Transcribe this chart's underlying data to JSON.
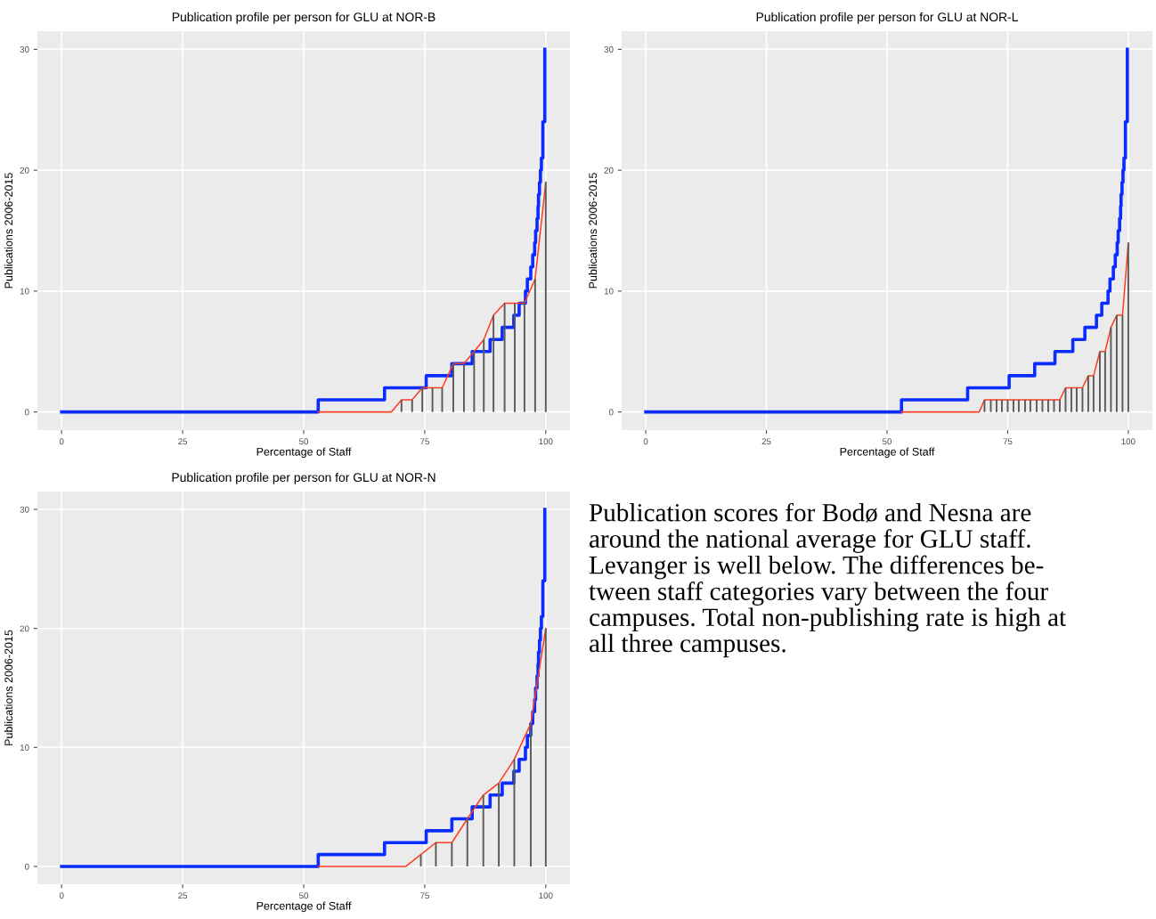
{
  "chart_data": [
    {
      "type": "line",
      "title": "Publication profile per person for GLU at NOR-B",
      "xlabel": "Percentage of Staff",
      "ylabel": "Publications 2006-2015",
      "xlim": [
        -5,
        105
      ],
      "ylim": [
        -1.5,
        31.5
      ],
      "xticks": [
        0,
        25,
        50,
        75,
        100
      ],
      "yticks": [
        0,
        10,
        20,
        30
      ],
      "grid": true,
      "series": [
        {
          "type": "bar",
          "color": "#595959",
          "x": [
            70.2,
            72.4,
            74.5,
            76.6,
            78.6,
            80.9,
            83.1,
            85.2,
            87.2,
            89.2,
            91.5,
            93.6,
            95.6,
            97.8,
            100
          ],
          "values": [
            1,
            1,
            2,
            2,
            2,
            4,
            4,
            5,
            6,
            8,
            9,
            9,
            9,
            11,
            19
          ]
        },
        {
          "type": "line",
          "color": "#ff3d1f",
          "x": [
            53,
            68.1,
            70.2,
            72.4,
            74.5,
            76.6,
            78.6,
            80.9,
            83.1,
            85.2,
            87.2,
            89.2,
            91.5,
            93.6,
            95.6,
            97.8,
            100
          ],
          "values": [
            0,
            0,
            1,
            1,
            2,
            2,
            2,
            4,
            4,
            5,
            6,
            8,
            9,
            9,
            9,
            11,
            19
          ]
        },
        {
          "type": "step",
          "color": "#0a2cff",
          "x": [
            0,
            53,
            66.7,
            75.3,
            80.6,
            84.8,
            88.5,
            91.0,
            93.4,
            94.5,
            95.8,
            96.2,
            96.9,
            97.3,
            97.7,
            97.9,
            98.2,
            98.4,
            98.5,
            98.7,
            98.9,
            99.1,
            99.4,
            99.8
          ],
          "values": [
            0,
            1,
            2,
            3,
            4,
            5,
            6,
            7,
            8,
            9,
            10,
            11,
            12,
            13,
            14,
            15,
            16,
            17,
            18,
            19,
            20,
            21,
            24,
            30
          ]
        }
      ]
    },
    {
      "type": "line",
      "title": "Publication profile per person for GLU at NOR-L",
      "xlabel": "Percentage of Staff",
      "ylabel": "Publications 2006-2015",
      "xlim": [
        -5,
        105
      ],
      "ylim": [
        -1.5,
        31.5
      ],
      "xticks": [
        0,
        25,
        50,
        75,
        100
      ],
      "yticks": [
        0,
        10,
        20,
        30
      ],
      "grid": true,
      "series": [
        {
          "type": "bar",
          "color": "#595959",
          "x": [
            70.2,
            71.5,
            72.7,
            73.8,
            75.0,
            76.2,
            77.3,
            78.6,
            79.7,
            81.0,
            82.2,
            83.4,
            84.6,
            85.8,
            87.0,
            88.2,
            89.3,
            90.5,
            91.7,
            92.8,
            94.1,
            95.2,
            96.4,
            97.6,
            98.8,
            100
          ],
          "values": [
            1,
            1,
            1,
            1,
            1,
            1,
            1,
            1,
            1,
            1,
            1,
            1,
            1,
            1,
            2,
            2,
            2,
            2,
            3,
            3,
            5,
            5,
            7,
            8,
            8,
            14
          ]
        },
        {
          "type": "line",
          "color": "#ff3d1f",
          "x": [
            53,
            69.1,
            70.2,
            71.5,
            72.7,
            73.8,
            75.0,
            76.2,
            77.3,
            78.6,
            79.7,
            81.0,
            82.2,
            83.4,
            84.6,
            85.8,
            87.0,
            88.2,
            89.3,
            90.5,
            91.7,
            92.8,
            94.1,
            95.2,
            96.4,
            97.6,
            98.8,
            100
          ],
          "values": [
            0,
            0,
            1,
            1,
            1,
            1,
            1,
            1,
            1,
            1,
            1,
            1,
            1,
            1,
            1,
            1,
            2,
            2,
            2,
            2,
            3,
            3,
            5,
            5,
            7,
            8,
            8,
            14
          ]
        },
        {
          "type": "step",
          "color": "#0a2cff",
          "x": [
            0,
            53,
            66.7,
            75.3,
            80.6,
            84.8,
            88.5,
            91.0,
            93.4,
            94.5,
            95.8,
            96.2,
            96.9,
            97.3,
            97.7,
            97.9,
            98.2,
            98.4,
            98.5,
            98.7,
            98.9,
            99.1,
            99.4,
            99.8
          ],
          "values": [
            0,
            1,
            2,
            3,
            4,
            5,
            6,
            7,
            8,
            9,
            10,
            11,
            12,
            13,
            14,
            15,
            16,
            17,
            18,
            19,
            20,
            21,
            24,
            30
          ]
        }
      ]
    },
    {
      "type": "line",
      "title": "Publication profile per person for GLU at NOR-N",
      "xlabel": "Percentage of Staff",
      "ylabel": "Publications 2006-2015",
      "xlim": [
        -5,
        105
      ],
      "ylim": [
        -1.5,
        31.5
      ],
      "xticks": [
        0,
        25,
        50,
        75,
        100
      ],
      "yticks": [
        0,
        10,
        20,
        30
      ],
      "grid": true,
      "series": [
        {
          "type": "bar",
          "color": "#595959",
          "x": [
            74.2,
            77.3,
            80.6,
            83.8,
            87.1,
            90.3,
            93.5,
            96.9,
            100
          ],
          "values": [
            1,
            2,
            2,
            4,
            6,
            7,
            9,
            12,
            20
          ]
        },
        {
          "type": "line",
          "color": "#ff3d1f",
          "x": [
            53,
            71.1,
            74.2,
            77.3,
            80.6,
            83.8,
            87.1,
            90.3,
            93.5,
            96.9,
            100
          ],
          "values": [
            0,
            0,
            1,
            2,
            2,
            4,
            6,
            7,
            9,
            12,
            20
          ]
        },
        {
          "type": "step",
          "color": "#0a2cff",
          "x": [
            0,
            53,
            66.7,
            75.3,
            80.6,
            84.8,
            88.5,
            91.0,
            93.4,
            94.5,
            95.8,
            96.2,
            96.9,
            97.3,
            97.7,
            97.9,
            98.2,
            98.4,
            98.5,
            98.7,
            98.9,
            99.1,
            99.4,
            99.8
          ],
          "values": [
            0,
            1,
            2,
            3,
            4,
            5,
            6,
            7,
            8,
            9,
            10,
            11,
            12,
            13,
            14,
            15,
            16,
            17,
            18,
            19,
            20,
            21,
            24,
            30
          ]
        }
      ]
    },
    {
      "type": "other",
      "annotations": [
        "Publication scores for Bodø and Nesna are\naround the national average for GLU staff.\nLevanger is well below. The differences be-\ntween staff categories vary between the four\ncampuses. Total non-publishing rate is high at\nall three campuses."
      ]
    }
  ]
}
